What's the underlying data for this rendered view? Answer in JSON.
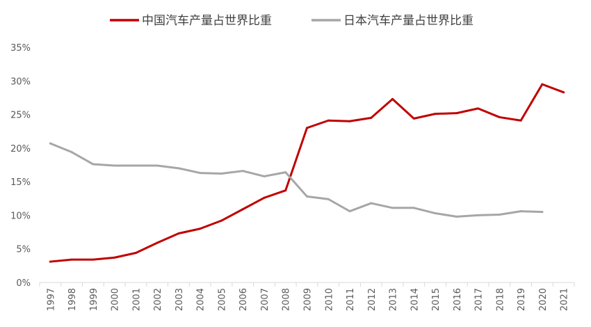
{
  "chart_data": {
    "type": "line",
    "title": "",
    "xlabel": "",
    "ylabel": "",
    "ylim": [
      0,
      35
    ],
    "ytick_step": 5,
    "ytick_suffix": "%",
    "grid": false,
    "legend_position": "top",
    "x": [
      "1997",
      "1998",
      "1999",
      "2000",
      "2001",
      "2002",
      "2003",
      "2004",
      "2005",
      "2006",
      "2007",
      "2008",
      "2009",
      "2010",
      "2011",
      "2012",
      "2013",
      "2014",
      "2015",
      "2016",
      "2017",
      "2018",
      "2019",
      "2020",
      "2021"
    ],
    "series": [
      {
        "name": "中国汽车产量占世界比重",
        "color": "#C00000",
        "values": [
          3.1,
          3.4,
          3.4,
          3.7,
          4.4,
          5.9,
          7.3,
          8.0,
          9.2,
          10.9,
          12.6,
          13.7,
          23.0,
          24.1,
          24.0,
          24.5,
          27.3,
          24.4,
          25.1,
          25.2,
          25.9,
          24.6,
          24.1,
          29.5,
          28.3
        ]
      },
      {
        "name": "日本汽车产量占世界比重",
        "color": "#A6A6A6",
        "values": [
          20.7,
          19.4,
          17.6,
          17.4,
          17.4,
          17.4,
          17.0,
          16.3,
          16.2,
          16.6,
          15.8,
          16.4,
          12.8,
          12.4,
          10.6,
          11.8,
          11.1,
          11.1,
          10.3,
          9.8,
          10.0,
          10.1,
          10.6,
          10.5,
          null
        ]
      }
    ]
  }
}
